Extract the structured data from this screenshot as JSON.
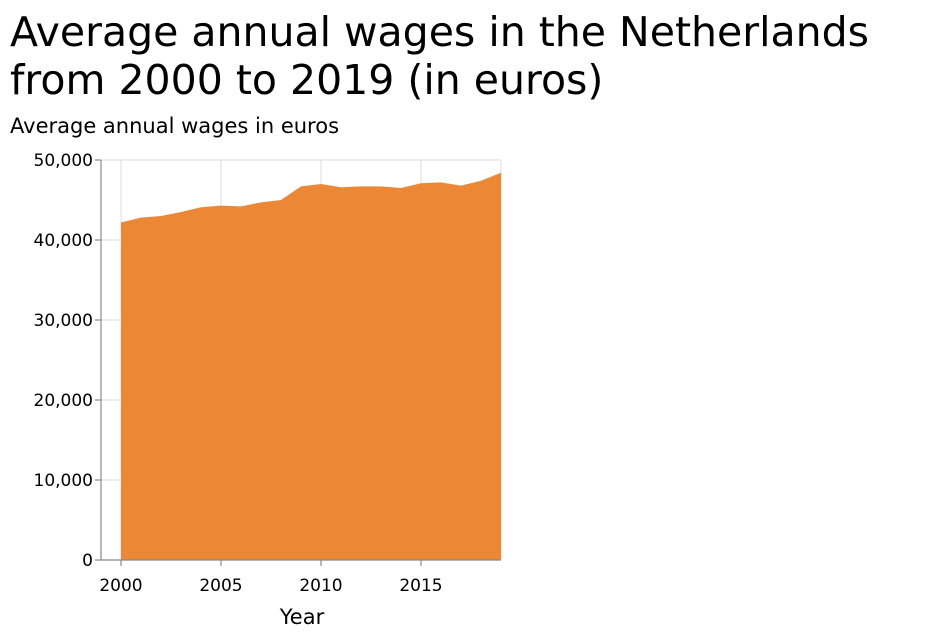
{
  "chart_data": {
    "type": "area",
    "title": "Average annual wages in the Netherlands from 2000 to 2019 (in euros)",
    "ylabel": "Average annual wages in euros",
    "xlabel": "Year",
    "x": [
      2000,
      2001,
      2002,
      2003,
      2004,
      2005,
      2006,
      2007,
      2008,
      2009,
      2010,
      2011,
      2012,
      2013,
      2014,
      2015,
      2016,
      2017,
      2018,
      2019
    ],
    "series": [
      {
        "values": [
          42200,
          42800,
          43000,
          43500,
          44100,
          44300,
          44200,
          44700,
          45000,
          46700,
          47000,
          46600,
          46700,
          46700,
          46500,
          47100,
          47200,
          46800,
          47400,
          48400
        ]
      }
    ],
    "xlim": [
      1999,
      2019
    ],
    "ylim": [
      0,
      50000
    ],
    "xticks": [
      2000,
      2005,
      2010,
      2015
    ],
    "xtick_labels": [
      "2000",
      "2005",
      "2010",
      "2015"
    ],
    "yticks": [
      0,
      10000,
      20000,
      30000,
      40000,
      50000
    ],
    "ytick_labels": [
      "0",
      "10,000",
      "20,000",
      "30,000",
      "40,000",
      "50,000"
    ],
    "grid": true,
    "colors": {
      "area": "#ec8735",
      "grid": "#dddddd",
      "axis": "#888888"
    }
  }
}
